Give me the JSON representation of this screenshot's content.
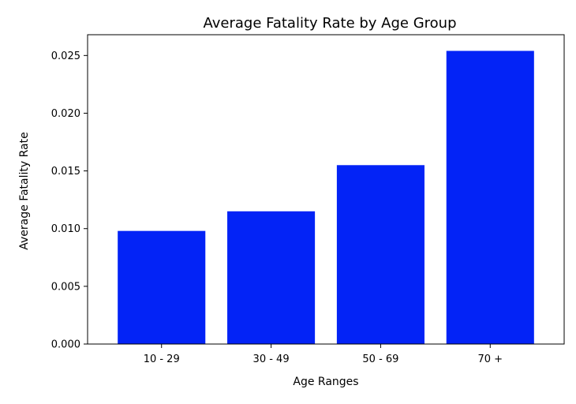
{
  "chart_data": {
    "type": "bar",
    "title": "Average Fatality Rate by Age Group",
    "xlabel": "Age Ranges",
    "ylabel": "Average Fatality Rate",
    "categories": [
      "10 - 29",
      "30 - 49",
      "50 - 69",
      "70 +"
    ],
    "values": [
      0.0098,
      0.0115,
      0.0155,
      0.0254
    ],
    "ylim": [
      0,
      0.0268
    ],
    "yticks": [
      0.0,
      0.005,
      0.01,
      0.015,
      0.02,
      0.025
    ],
    "ytick_labels": [
      "0.000",
      "0.005",
      "0.010",
      "0.015",
      "0.020",
      "0.025"
    ],
    "bar_color": "#0323f6",
    "grid": false,
    "legend": "none"
  }
}
